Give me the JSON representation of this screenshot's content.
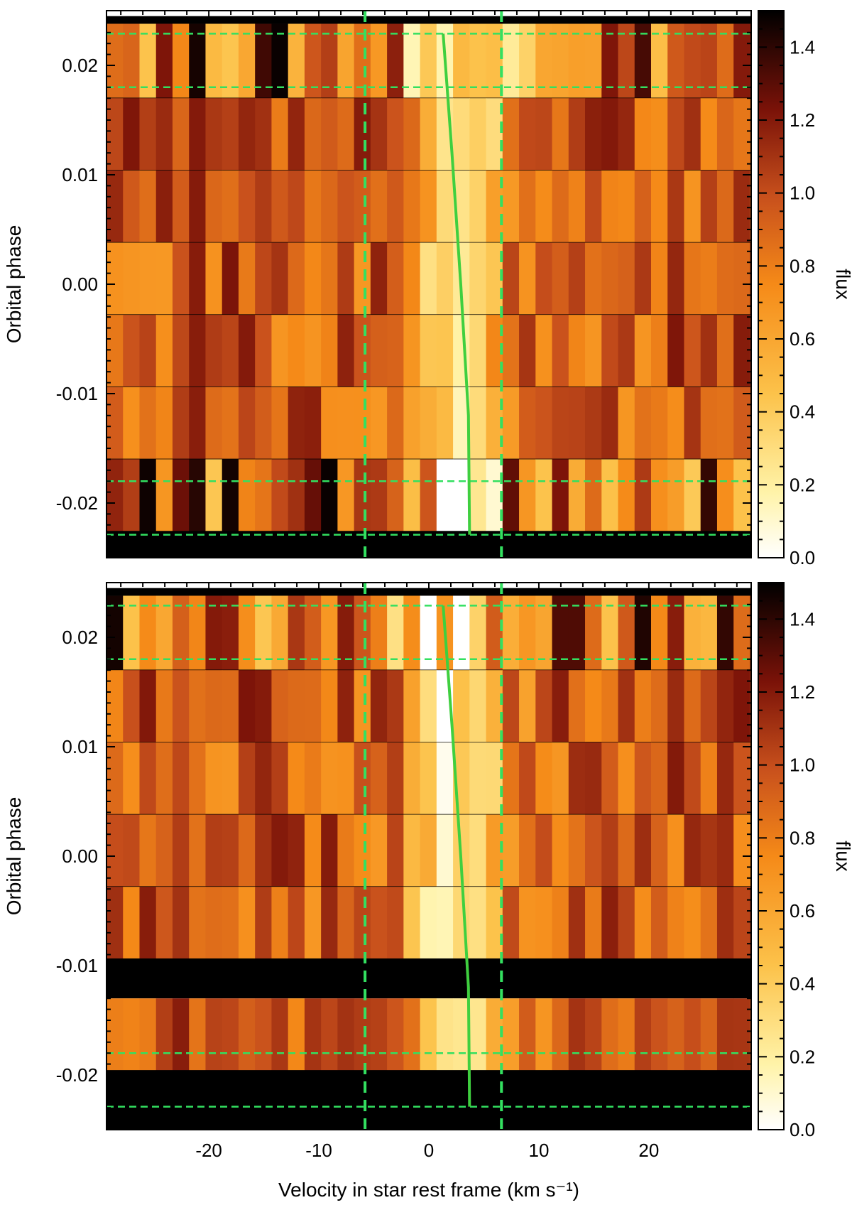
{
  "chart_data": [
    {
      "type": "heatmap",
      "panel": "top",
      "ylabel": "Orbital phase",
      "colorbar_label": "flux",
      "xlim": [
        -29.3,
        29.3
      ],
      "ylim": [
        -0.025,
        0.025
      ],
      "x_ticks": [
        "-20",
        "-10",
        "0",
        "10",
        "20"
      ],
      "x_tick_values": [
        -20,
        -10,
        0,
        10,
        20
      ],
      "y_ticks": [
        "0.02",
        "0.01",
        "0.00",
        "-0.01",
        "-0.02"
      ],
      "y_tick_values": [
        0.02,
        0.01,
        0.0,
        -0.01,
        -0.02
      ],
      "colorbar_ticks": [
        "0.0",
        "0.2",
        "0.4",
        "0.6",
        "0.8",
        "1.0",
        "1.2",
        "1.4"
      ],
      "colorbar_range": [
        0.0,
        1.5
      ],
      "colormap": [
        "#ffffff",
        "#fff3a8",
        "#fcc24a",
        "#f58a18",
        "#c8501c",
        "#7a1208",
        "#000000"
      ],
      "velocity_bin_width": 1.5,
      "rows": [
        {
          "phase_top": 0.0245,
          "phase_bottom": 0.0238,
          "flux_seed": 0,
          "level": "masked"
        },
        {
          "phase_top": 0.0238,
          "phase_bottom": 0.017,
          "flux_seed": 1,
          "level": "noisy"
        },
        {
          "phase_top": 0.017,
          "phase_bottom": 0.0104,
          "flux_seed": 2,
          "level": "normal"
        },
        {
          "phase_top": 0.0104,
          "phase_bottom": 0.0038,
          "flux_seed": 3,
          "level": "normal"
        },
        {
          "phase_top": 0.0038,
          "phase_bottom": -0.0028,
          "flux_seed": 4,
          "level": "normal"
        },
        {
          "phase_top": -0.0028,
          "phase_bottom": -0.0094,
          "flux_seed": 5,
          "level": "normal"
        },
        {
          "phase_top": -0.0094,
          "phase_bottom": -0.016,
          "flux_seed": 6,
          "level": "normal"
        },
        {
          "phase_top": -0.016,
          "phase_bottom": -0.0226,
          "flux_seed": 7,
          "level": "noisy"
        },
        {
          "phase_top": -0.0226,
          "phase_bottom": -0.025,
          "flux_seed": 0,
          "level": "masked"
        }
      ],
      "vertical_lines_velocity": [
        -5.8,
        6.6
      ],
      "horizontal_lines_phase": [
        0.0229,
        0.018,
        -0.018,
        -0.0229
      ],
      "model_track": [
        {
          "velocity": 1.3,
          "phase": 0.0229
        },
        {
          "velocity": 2.1,
          "phase": 0.012
        },
        {
          "velocity": 2.9,
          "phase": 0.0
        },
        {
          "velocity": 3.6,
          "phase": -0.012
        },
        {
          "velocity": 3.7,
          "phase": -0.0229
        }
      ]
    },
    {
      "type": "heatmap",
      "panel": "bottom",
      "xlabel": "Velocity in star rest frame (km s⁻¹)",
      "ylabel": "Orbital phase",
      "colorbar_label": "flux",
      "xlim": [
        -29.3,
        29.3
      ],
      "ylim": [
        -0.025,
        0.025
      ],
      "x_ticks": [
        "-20",
        "-10",
        "0",
        "10",
        "20"
      ],
      "x_tick_values": [
        -20,
        -10,
        0,
        10,
        20
      ],
      "y_ticks": [
        "0.02",
        "0.01",
        "0.00",
        "-0.01",
        "-0.02"
      ],
      "y_tick_values": [
        0.02,
        0.01,
        0.0,
        -0.01,
        -0.02
      ],
      "colorbar_ticks": [
        "0.0",
        "0.2",
        "0.4",
        "0.6",
        "0.8",
        "1.0",
        "1.2",
        "1.4"
      ],
      "colorbar_range": [
        0.0,
        1.5
      ],
      "colormap": [
        "#ffffff",
        "#fff3a8",
        "#fcc24a",
        "#f58a18",
        "#c8501c",
        "#7a1208",
        "#000000"
      ],
      "velocity_bin_width": 1.5,
      "rows": [
        {
          "phase_top": 0.0245,
          "phase_bottom": 0.0238,
          "flux_seed": 0,
          "level": "masked"
        },
        {
          "phase_top": 0.0238,
          "phase_bottom": 0.017,
          "flux_seed": 11,
          "level": "noisy"
        },
        {
          "phase_top": 0.017,
          "phase_bottom": 0.0104,
          "flux_seed": 12,
          "level": "normal"
        },
        {
          "phase_top": 0.0104,
          "phase_bottom": 0.0038,
          "flux_seed": 13,
          "level": "normal"
        },
        {
          "phase_top": 0.0038,
          "phase_bottom": -0.0028,
          "flux_seed": 14,
          "level": "normal"
        },
        {
          "phase_top": -0.0028,
          "phase_bottom": -0.0094,
          "flux_seed": 15,
          "level": "normal"
        },
        {
          "phase_top": -0.0094,
          "phase_bottom": -0.013,
          "flux_seed": 0,
          "level": "masked"
        },
        {
          "phase_top": -0.013,
          "phase_bottom": -0.0196,
          "flux_seed": 17,
          "level": "normal"
        },
        {
          "phase_top": -0.0196,
          "phase_bottom": -0.025,
          "flux_seed": 0,
          "level": "masked"
        }
      ],
      "vertical_lines_velocity": [
        -5.8,
        6.6
      ],
      "horizontal_lines_phase": [
        0.0229,
        0.018,
        -0.018,
        -0.0229
      ],
      "model_track": [
        {
          "velocity": 1.3,
          "phase": 0.0229
        },
        {
          "velocity": 2.1,
          "phase": 0.012
        },
        {
          "velocity": 2.9,
          "phase": 0.0
        },
        {
          "velocity": 3.6,
          "phase": -0.012
        },
        {
          "velocity": 3.7,
          "phase": -0.0229
        }
      ]
    }
  ],
  "colors": {
    "model_track": "#3fcf3f",
    "dashed_lines": "#33e060",
    "masked": "#000000"
  }
}
